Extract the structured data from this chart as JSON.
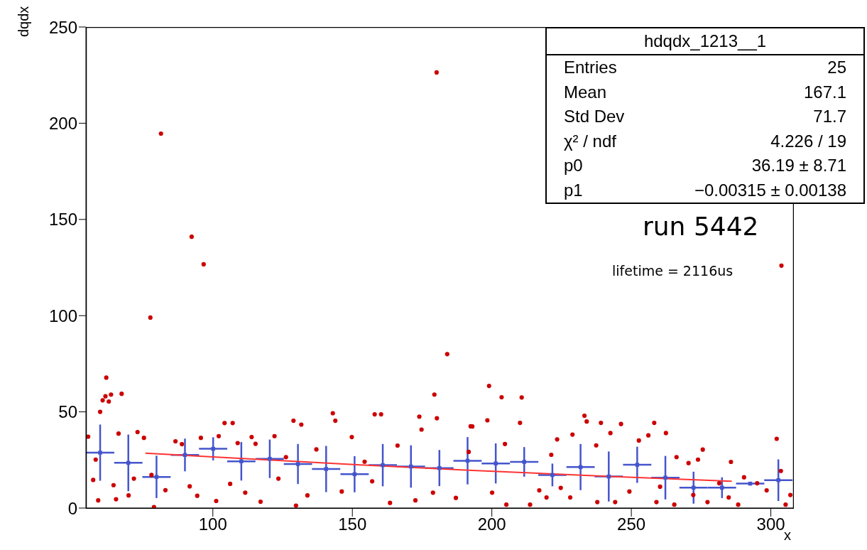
{
  "chart_data": {
    "type": "scatter",
    "xlabel": "x",
    "ylabel": "dqdx",
    "xlim": [
      54.5,
      308
    ],
    "ylim": [
      0,
      250
    ],
    "xticks": [
      100,
      150,
      200,
      250,
      300
    ],
    "yticks": [
      0,
      50,
      100,
      150,
      200,
      250
    ],
    "grid": false,
    "legend": false,
    "annotations": [
      "hdqdx_1213__1",
      "Entries",
      "25",
      "Mean",
      "167.1",
      "Std Dev",
      "71.7",
      "χ² / ndf",
      "4.226 / 19",
      "p0",
      "36.19 ± 8.71",
      "p1",
      "−0.00315 ± 0.00138",
      "run 5442",
      "lifetime = 2116us"
    ],
    "series": [
      {
        "type": "scatter",
        "color": "#cc0000",
        "marker": "circle",
        "x": [
          81.4,
          77.6,
          92.4,
          96.7,
          180.2,
          184,
          199,
          203.5,
          179.4,
          303.8,
          61.8,
          60.5,
          63.5,
          61.5,
          62.7,
          67.3,
          59.6,
          66.2,
          73,
          75.3,
          55.3,
          58,
          57.1,
          58.9,
          64.4,
          65.3,
          69.8,
          71.7,
          78,
          78.9,
          83,
          86.6,
          88.9,
          91.7,
          94.4,
          95.7,
          101.2,
          102.1,
          104.2,
          107.1,
          106.2,
          108.9,
          111.6,
          113.9,
          115.3,
          117.1,
          122.1,
          123.5,
          126.2,
          128.9,
          131.7,
          129.8,
          133.9,
          137.1,
          143,
          143.9,
          146.2,
          149.8,
          154.4,
          158,
          160.3,
          157.1,
          163.5,
          166.2,
          174,
          174.8,
          180.3,
          172.6,
          178.9,
          187.1,
          193,
          191.7,
          210.7,
          192.4,
          198.4,
          210.1,
          204.7,
          200.1,
          205.2,
          213.7,
          217,
          219.6,
          223.4,
          221.3,
          224.7,
          228.9,
          233.2,
          234,
          237.4,
          239.1,
          228.1,
          237.8,
          242.5,
          246.3,
          244.2,
          249.3,
          252.7,
          256.1,
          258.2,
          262.4,
          259,
          260.3,
          266.2,
          265.4,
          270.5,
          275.6,
          273.9,
          272.2,
          277.3,
          281.5,
          285.7,
          284.9,
          288.3,
          290.4,
          295.1,
          298.5,
          302.1,
          303.6,
          305.3,
          307
        ],
        "values": [
          194.6,
          99,
          141,
          126.7,
          226.4,
          80,
          63.5,
          57.6,
          59,
          126,
          67.8,
          56,
          59,
          58.1,
          55.4,
          59.4,
          50,
          38.7,
          39.5,
          36.5,
          37.1,
          25.2,
          14.6,
          4,
          11.9,
          4.6,
          6.6,
          15.3,
          17.2,
          0.5,
          9.3,
          34.7,
          33.2,
          11.3,
          6.4,
          36.5,
          3.7,
          37.4,
          44.2,
          44.2,
          12.6,
          33.8,
          8,
          36.9,
          33.4,
          3.3,
          37.4,
          15.3,
          26.5,
          45.4,
          43.4,
          1.3,
          6.6,
          30.5,
          49.3,
          45.4,
          8.6,
          36.9,
          24.1,
          48.7,
          48.7,
          13.9,
          2.7,
          32.5,
          47.5,
          40.8,
          46.7,
          4,
          8,
          5.3,
          42.4,
          29.2,
          57.5,
          42.5,
          45.6,
          44.3,
          33.3,
          8,
          1.8,
          1.8,
          9.2,
          5.5,
          35.7,
          27.7,
          10.5,
          38.2,
          48,
          45,
          32.6,
          44.3,
          5.5,
          3.1,
          39,
          43.7,
          3.1,
          8.6,
          35.1,
          37.8,
          44.3,
          39,
          3.1,
          11.1,
          26.5,
          1.8,
          23.4,
          30.4,
          25.2,
          6.8,
          3.1,
          12.9,
          24,
          5.5,
          1.8,
          16,
          12.9,
          9.2,
          36,
          19.3,
          1.8,
          6.8
        ]
      },
      {
        "type": "scatter",
        "color": "#4455cc",
        "marker": "square",
        "x": [
          59.6,
          69.7,
          79.8,
          90.0,
          100.1,
          110.2,
          120.4,
          130.5,
          140.6,
          150.8,
          160.9,
          171.0,
          181.2,
          191.3,
          201.4,
          211.6,
          221.7,
          231.8,
          241.9,
          252.1,
          262.2,
          272.3,
          282.5,
          292.6,
          302.7
        ],
        "values": [
          28.8,
          23.5,
          16.2,
          27.6,
          30.8,
          24.3,
          25.6,
          22.9,
          20.3,
          17.6,
          22.3,
          21.6,
          20.8,
          24.6,
          23.2,
          24.0,
          17.2,
          21.3,
          16.4,
          22.5,
          15.8,
          10.6,
          10.6,
          12.7,
          14.5
        ],
        "errors": [
          14.6,
          14.7,
          11,
          8.5,
          6,
          10,
          10,
          10.4,
          12,
          9.4,
          11,
          11,
          9.4,
          12.3,
          10.4,
          7.7,
          5.9,
          12,
          13,
          9.4,
          11.3,
          8.3,
          5.4,
          null,
          10.8
        ],
        "xerrors": [
          5.07,
          5.07,
          5.07,
          5.07,
          5.07,
          5.07,
          5.07,
          5.07,
          5.07,
          5.07,
          5.07,
          5.07,
          5.07,
          5.07,
          5.07,
          5.07,
          5.07,
          5.07,
          5.07,
          5.07,
          5.07,
          5.07,
          5.07,
          5.07,
          5.07
        ]
      },
      {
        "type": "line",
        "color": "#ff3333",
        "marker": "none",
        "x": [
          75.8,
          151.7,
          191.6,
          242.5,
          286
        ],
        "values": [
          28.5,
          22.5,
          19.7,
          16.4,
          13.9
        ]
      }
    ]
  }
}
